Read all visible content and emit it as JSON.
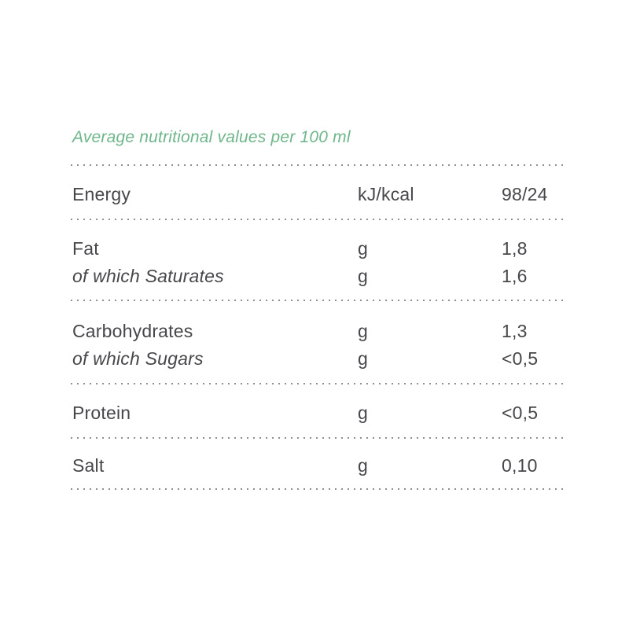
{
  "page": {
    "background_color": "#ffffff",
    "text_color": "#47474b",
    "dot_color": "#8f8f93",
    "title_color": "#6fb68b"
  },
  "table": {
    "title": "Average nutritional values per 100 ml",
    "sections": [
      {
        "key": "s-energy",
        "rows": [
          {
            "label": "Energy",
            "italic": false,
            "unit": "kJ/kcal",
            "value": "98/24"
          }
        ]
      },
      {
        "key": "s-fat",
        "rows": [
          {
            "label": "Fat",
            "italic": false,
            "unit": "g",
            "value": "1,8"
          },
          {
            "label": "of which Saturates",
            "italic": true,
            "unit": "g",
            "value": "1,6"
          }
        ]
      },
      {
        "key": "s-carbs",
        "rows": [
          {
            "label": "Carbohydrates",
            "italic": false,
            "unit": "g",
            "value": "1,3"
          },
          {
            "label": "of which Sugars",
            "italic": true,
            "unit": "g",
            "value": "<0,5"
          }
        ]
      },
      {
        "key": "s-protein",
        "rows": [
          {
            "label": "Protein",
            "italic": false,
            "unit": "g",
            "value": "<0,5"
          }
        ]
      },
      {
        "key": "s-salt",
        "rows": [
          {
            "label": "Salt",
            "italic": false,
            "unit": "g",
            "value": "0,10"
          }
        ]
      }
    ]
  }
}
